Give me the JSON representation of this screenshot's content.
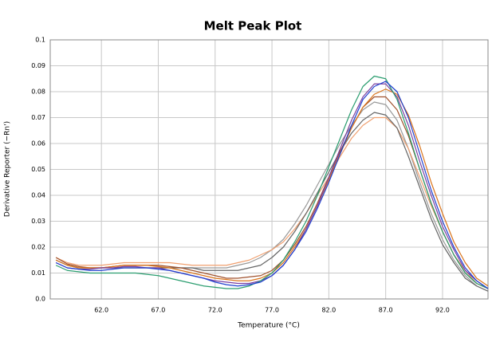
{
  "chart_data": {
    "type": "line",
    "title": "Melt Peak Plot",
    "x_label": "Temperature (°C)",
    "y_label": "Derivative Reporter (−Rn')",
    "x": [
      58,
      59,
      60,
      61,
      62,
      63,
      64,
      65,
      66,
      67,
      68,
      69,
      70,
      71,
      72,
      73,
      74,
      75,
      76,
      77,
      78,
      79,
      80,
      81,
      82,
      83,
      84,
      85,
      86,
      87,
      88,
      89,
      90,
      91,
      92,
      93,
      94,
      95,
      96
    ],
    "xlim": [
      57.5,
      96
    ],
    "xticks": [
      {
        "value": 62,
        "label": "62.0"
      },
      {
        "value": 67,
        "label": "67.0"
      },
      {
        "value": 72,
        "label": "72.0"
      },
      {
        "value": 77,
        "label": "77.0"
      },
      {
        "value": 82,
        "label": "82.0"
      },
      {
        "value": 87,
        "label": "87.0"
      },
      {
        "value": 92,
        "label": "92.0"
      }
    ],
    "ylim": [
      0,
      0.1
    ],
    "yticks": [
      {
        "value": 0,
        "label": "0.0"
      },
      0.01,
      0.02,
      0.03,
      0.04,
      0.05,
      0.06,
      0.07,
      0.08,
      0.09,
      0.1
    ],
    "grid": true,
    "series": [
      {
        "color": "#999999",
        "values": [
          0.015,
          0.013,
          0.012,
          0.012,
          0.012,
          0.012,
          0.012,
          0.012,
          0.012,
          0.012,
          0.012,
          0.012,
          0.012,
          0.012,
          0.012,
          0.012,
          0.013,
          0.014,
          0.016,
          0.019,
          0.023,
          0.029,
          0.036,
          0.044,
          0.052,
          0.06,
          0.067,
          0.073,
          0.076,
          0.075,
          0.069,
          0.058,
          0.045,
          0.033,
          0.023,
          0.015,
          0.009,
          0.005,
          0.003
        ]
      },
      {
        "color": "#f0a070",
        "values": [
          0.016,
          0.014,
          0.013,
          0.013,
          0.013,
          0.0135,
          0.014,
          0.014,
          0.014,
          0.014,
          0.014,
          0.0135,
          0.013,
          0.013,
          0.013,
          0.013,
          0.014,
          0.015,
          0.017,
          0.019,
          0.022,
          0.027,
          0.033,
          0.04,
          0.047,
          0.055,
          0.062,
          0.067,
          0.07,
          0.07,
          0.066,
          0.058,
          0.047,
          0.036,
          0.026,
          0.017,
          0.011,
          0.006,
          0.004
        ]
      },
      {
        "color": "#666666",
        "values": [
          0.015,
          0.013,
          0.012,
          0.012,
          0.012,
          0.012,
          0.012,
          0.012,
          0.012,
          0.012,
          0.012,
          0.012,
          0.012,
          0.011,
          0.011,
          0.011,
          0.011,
          0.012,
          0.013,
          0.016,
          0.02,
          0.026,
          0.033,
          0.041,
          0.049,
          0.057,
          0.064,
          0.069,
          0.072,
          0.071,
          0.066,
          0.055,
          0.043,
          0.031,
          0.021,
          0.014,
          0.008,
          0.005,
          0.003
        ]
      },
      {
        "color": "#a0522d",
        "values": [
          0.016,
          0.0135,
          0.0125,
          0.012,
          0.012,
          0.0125,
          0.013,
          0.013,
          0.013,
          0.013,
          0.0125,
          0.012,
          0.011,
          0.01,
          0.009,
          0.008,
          0.008,
          0.0085,
          0.009,
          0.011,
          0.015,
          0.021,
          0.028,
          0.037,
          0.047,
          0.057,
          0.066,
          0.074,
          0.078,
          0.078,
          0.073,
          0.063,
          0.05,
          0.037,
          0.026,
          0.017,
          0.01,
          0.006,
          0.004
        ]
      },
      {
        "color": "#d9731a",
        "values": [
          0.015,
          0.013,
          0.012,
          0.012,
          0.012,
          0.0125,
          0.013,
          0.013,
          0.013,
          0.0125,
          0.012,
          0.011,
          0.01,
          0.009,
          0.008,
          0.0075,
          0.007,
          0.007,
          0.008,
          0.01,
          0.014,
          0.02,
          0.027,
          0.036,
          0.046,
          0.056,
          0.066,
          0.074,
          0.079,
          0.081,
          0.079,
          0.071,
          0.059,
          0.045,
          0.033,
          0.022,
          0.014,
          0.008,
          0.005
        ]
      },
      {
        "color": "#7a3fa0",
        "values": [
          0.014,
          0.012,
          0.0115,
          0.0115,
          0.012,
          0.012,
          0.0125,
          0.0125,
          0.012,
          0.012,
          0.011,
          0.01,
          0.009,
          0.008,
          0.007,
          0.0065,
          0.006,
          0.006,
          0.007,
          0.009,
          0.013,
          0.019,
          0.027,
          0.036,
          0.047,
          0.058,
          0.069,
          0.078,
          0.083,
          0.083,
          0.078,
          0.067,
          0.053,
          0.04,
          0.028,
          0.019,
          0.011,
          0.007,
          0.004
        ]
      },
      {
        "color": "#2a9d6f",
        "values": [
          0.013,
          0.011,
          0.0105,
          0.01,
          0.01,
          0.01,
          0.01,
          0.01,
          0.0095,
          0.009,
          0.008,
          0.007,
          0.006,
          0.005,
          0.0045,
          0.004,
          0.004,
          0.005,
          0.007,
          0.01,
          0.015,
          0.022,
          0.03,
          0.04,
          0.051,
          0.062,
          0.073,
          0.082,
          0.086,
          0.085,
          0.077,
          0.064,
          0.05,
          0.037,
          0.026,
          0.017,
          0.01,
          0.006,
          0.004
        ]
      },
      {
        "color": "#1f3fcf",
        "values": [
          0.014,
          0.012,
          0.0115,
          0.011,
          0.011,
          0.0115,
          0.012,
          0.012,
          0.012,
          0.0115,
          0.011,
          0.01,
          0.009,
          0.008,
          0.0065,
          0.0055,
          0.005,
          0.0055,
          0.0065,
          0.009,
          0.013,
          0.019,
          0.026,
          0.035,
          0.045,
          0.056,
          0.067,
          0.077,
          0.082,
          0.084,
          0.08,
          0.07,
          0.056,
          0.042,
          0.03,
          0.02,
          0.012,
          0.007,
          0.004
        ]
      }
    ]
  }
}
